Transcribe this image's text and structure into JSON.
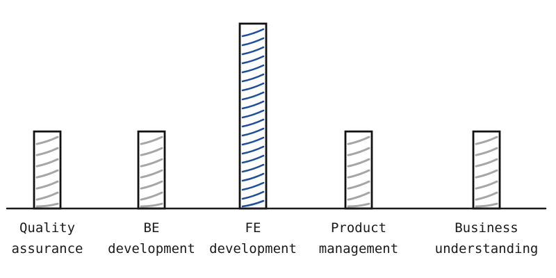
{
  "chart_data": {
    "type": "bar",
    "categories": [
      [
        "Quality",
        "assurance"
      ],
      [
        "BE",
        "development"
      ],
      [
        "FE",
        "development"
      ],
      [
        "Product",
        "management"
      ],
      [
        "Business",
        "understanding"
      ]
    ],
    "values": [
      1,
      1,
      2.4,
      1,
      1
    ],
    "ylim": [
      0,
      2.4
    ],
    "title": "",
    "xlabel": "",
    "ylabel": "",
    "grid": false,
    "colors": {
      "default_hatch": "#a6a6a6",
      "highlight_hatch": "#1f4e9c",
      "outline": "#111111"
    },
    "highlight_index": 2
  }
}
